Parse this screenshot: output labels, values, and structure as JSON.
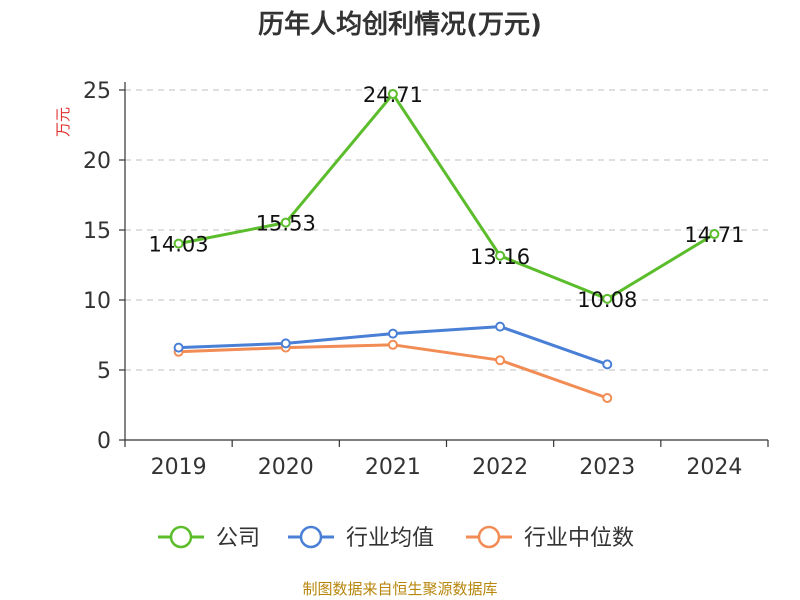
{
  "chart_data": {
    "type": "line",
    "title": "历年人均创利情况(万元)",
    "ylabel": "万元",
    "xlabel": "",
    "categories": [
      "2019",
      "2020",
      "2021",
      "2022",
      "2023",
      "2024"
    ],
    "ylim": [
      0,
      25
    ],
    "yticks": [
      0,
      5,
      10,
      15,
      20,
      25
    ],
    "grid": true,
    "legend_position": "bottom",
    "series": [
      {
        "name": "公司",
        "color": "#5bbd2b",
        "values": [
          14.03,
          15.53,
          24.71,
          13.16,
          10.08,
          14.71
        ],
        "show_labels": true
      },
      {
        "name": "行业均值",
        "color": "#4a7fd6",
        "values": [
          6.6,
          6.9,
          7.6,
          8.1,
          5.4,
          null
        ],
        "show_labels": false
      },
      {
        "name": "行业中位数",
        "color": "#f28c55",
        "values": [
          6.3,
          6.6,
          6.8,
          5.7,
          3.0,
          null
        ],
        "show_labels": false
      }
    ],
    "source": "制图数据来自恒生聚源数据库"
  }
}
